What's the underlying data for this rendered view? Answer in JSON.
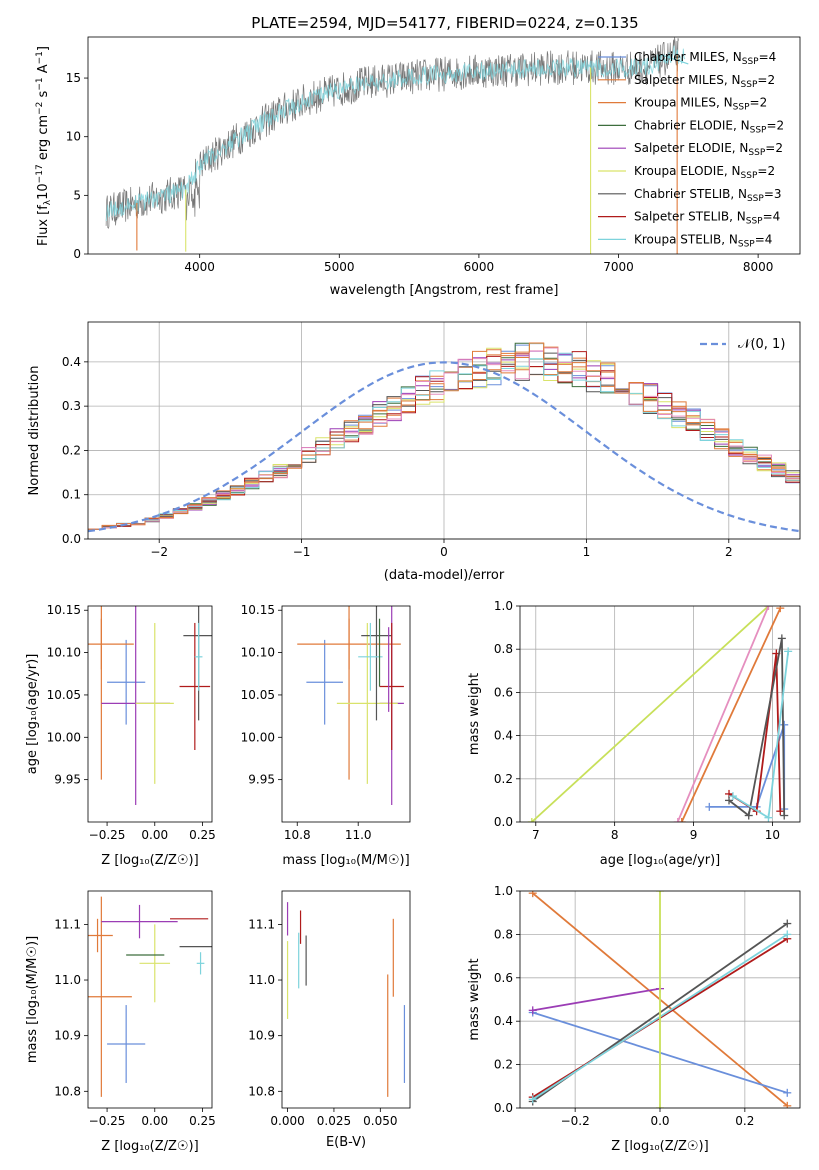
{
  "title": "PLATE=2594, MJD=54177, FIBERID=0224, z=0.135",
  "colors": {
    "Chabrier MILES": "#6a8fdb",
    "Salpeter MILES": "#e07a3a",
    "Kroupa MILES": "#e07a3a",
    "Chabrier ELODIE": "#3d6e3d",
    "Salpeter ELODIE": "#9b3db5",
    "Kroupa ELODIE": "#d9e36b",
    "Chabrier STELIB": "#555555",
    "Salpeter STELIB": "#b01b1b",
    "Kroupa STELIB": "#7dd3dc",
    "gaussian": "#6a8fdb",
    "pink": "#e58fbf",
    "orange2": "#e07a3a",
    "lime": "#c8e05a"
  },
  "chart_data": [
    {
      "id": "spectrum",
      "type": "line",
      "title": "PLATE=2594, MJD=54177, FIBERID=0224, z=0.135",
      "xlabel": "wavelength [Angstrom, rest frame]",
      "ylabel_parts": [
        "Flux [f",
        "λ",
        "10",
        "−17",
        " erg cm",
        "−2",
        " s",
        "−1",
        " A",
        "−1",
        "]"
      ],
      "xlim": [
        3200,
        8300
      ],
      "ylim": [
        0,
        18.5
      ],
      "xticks": [
        4000,
        5000,
        6000,
        7000,
        8000
      ],
      "yticks": [
        0,
        5,
        10,
        15
      ],
      "xtick_labels": [
        "4000",
        "5000",
        "6000",
        "7000",
        "8000"
      ],
      "ytick_labels": [
        "0",
        "5",
        "10",
        "15"
      ],
      "legend_position": "top-right",
      "legend": [
        {
          "name": "Chabrier MILES",
          "nssp": "4"
        },
        {
          "name": "Salpeter MILES",
          "nssp": "2"
        },
        {
          "name": "Kroupa MILES",
          "nssp": "2"
        },
        {
          "name": "Chabrier ELODIE",
          "nssp": "2"
        },
        {
          "name": "Salpeter ELODIE",
          "nssp": "2"
        },
        {
          "name": "Kroupa ELODIE",
          "nssp": "2"
        },
        {
          "name": "Chabrier STELIB",
          "nssp": "3"
        },
        {
          "name": "Salpeter STELIB",
          "nssp": "4"
        },
        {
          "name": "Kroupa STELIB",
          "nssp": "4"
        }
      ],
      "legend_nssp_label": "N",
      "legend_nssp_sub": "SSP",
      "continuum": {
        "x": [
          3300,
          3500,
          3700,
          3900,
          4000,
          4200,
          4400,
          4600,
          4800,
          5000,
          5200,
          5400,
          5600,
          5800,
          6000,
          6200,
          6400,
          6600,
          6800,
          7000,
          7200,
          7400
        ],
        "y": [
          3.5,
          4.2,
          4.8,
          5.5,
          7.5,
          9.3,
          10.8,
          12.3,
          13.3,
          14.0,
          14.6,
          14.9,
          15.2,
          15.4,
          15.6,
          15.7,
          15.8,
          15.9,
          15.9,
          15.8,
          15.9,
          17.0
        ]
      },
      "spikes_down": [
        {
          "x": 3550,
          "y": 0.3
        },
        {
          "x": 3900,
          "y": 0.2
        },
        {
          "x": 6800,
          "y": 0.0
        },
        {
          "x": 7420,
          "y": 0.0
        }
      ],
      "model_curve": {
        "x": [
          7300,
          7400,
          7500
        ],
        "y": [
          17.0,
          16.6,
          16.2
        ]
      }
    },
    {
      "id": "residuals",
      "type": "histogram",
      "xlabel": "(data-model)/error",
      "ylabel": "Normed distribution",
      "xlim": [
        -2.5,
        2.5
      ],
      "ylim": [
        0,
        0.49
      ],
      "xticks": [
        -2,
        -1,
        0,
        1,
        2
      ],
      "yticks": [
        0.0,
        0.1,
        0.2,
        0.3,
        0.4
      ],
      "xtick_labels": [
        "−2",
        "−1",
        "0",
        "1",
        "2"
      ],
      "ytick_labels": [
        "0.0",
        "0.1",
        "0.2",
        "0.3",
        "0.4"
      ],
      "legend_position": "top-right",
      "legend_label": "𝒩(0, 1)",
      "grid": true,
      "bin_edges_start": -2.5,
      "bin_width": 0.1,
      "base_heights": [
        0.025,
        0.028,
        0.032,
        0.036,
        0.043,
        0.052,
        0.062,
        0.073,
        0.085,
        0.098,
        0.11,
        0.124,
        0.14,
        0.155,
        0.172,
        0.19,
        0.208,
        0.228,
        0.245,
        0.265,
        0.282,
        0.3,
        0.318,
        0.333,
        0.347,
        0.36,
        0.372,
        0.382,
        0.39,
        0.396,
        0.399,
        0.399,
        0.396,
        0.39,
        0.382,
        0.372,
        0.36,
        0.347,
        0.333,
        0.318,
        0.3,
        0.282,
        0.265,
        0.245,
        0.228,
        0.208,
        0.19,
        0.172,
        0.155,
        0.14
      ],
      "tail": [
        0.124,
        0.11,
        0.098,
        0.085,
        0.073,
        0.062,
        0.052,
        0.043,
        0.036,
        0.032,
        0.028,
        0.025
      ]
    },
    {
      "id": "age-vs-Z",
      "type": "errorbar",
      "xlabel": "Z [log₁₀(Z/Z☉)]",
      "ylabel": "age  [log₁₀(age/yr)]",
      "xlim": [
        -0.35,
        0.3
      ],
      "ylim": [
        9.9,
        10.155
      ],
      "xticks": [
        -0.25,
        0.0,
        0.25
      ],
      "xtick_labels": [
        "−0.25",
        "0.00",
        "0.25"
      ],
      "yticks": [
        9.95,
        10.0,
        10.05,
        10.1,
        10.15
      ],
      "ytick_labels": [
        "9.95",
        "10.00",
        "10.05",
        "10.10",
        "10.15"
      ],
      "points": [
        {
          "c": "Chabrier MILES",
          "x": -0.15,
          "y": 10.065,
          "xerr": 0.1,
          "yerr": 0.05
        },
        {
          "c": "Salpeter MILES",
          "x": -0.28,
          "y": 10.11,
          "xerr": 0.0,
          "yerr": 0.16
        },
        {
          "c": "Kroupa MILES",
          "x": -0.28,
          "y": 10.11,
          "xerr": 0.17,
          "yerr": 0.03
        },
        {
          "c": "Salpeter ELODIE",
          "x": -0.1,
          "y": 10.04,
          "xerr": 0.18,
          "yerr": 0.12
        },
        {
          "c": "Kroupa ELODIE",
          "x": 0.0,
          "y": 10.04,
          "xerr": 0.1,
          "yerr": 0.095
        },
        {
          "c": "Chabrier STELIB",
          "x": 0.23,
          "y": 10.12,
          "xerr": 0.08,
          "yerr": 0.1
        },
        {
          "c": "Salpeter STELIB",
          "x": 0.21,
          "y": 10.06,
          "xerr": 0.08,
          "yerr": 0.075
        },
        {
          "c": "Kroupa STELIB",
          "x": 0.23,
          "y": 10.095,
          "xerr": 0.02,
          "yerr": 0.04
        }
      ]
    },
    {
      "id": "age-vs-mass",
      "type": "errorbar",
      "xlabel": "mass [log₁₀(M/M☉)]",
      "ylabel": "",
      "xlim": [
        10.75,
        11.17
      ],
      "ylim": [
        9.9,
        10.155
      ],
      "xticks": [
        10.8,
        11.0
      ],
      "xtick_labels": [
        "10.8",
        "11.0"
      ],
      "yticks": [
        9.95,
        10.0,
        10.05,
        10.1,
        10.15
      ],
      "ytick_labels": [
        "9.95",
        "10.00",
        "10.05",
        "10.10",
        "10.15"
      ],
      "points": [
        {
          "c": "Chabrier MILES",
          "x": 10.89,
          "y": 10.065,
          "xerr": 0.06,
          "yerr": 0.05
        },
        {
          "c": "Salpeter MILES",
          "x": 10.97,
          "y": 10.11,
          "xerr": 0.0,
          "yerr": 0.16
        },
        {
          "c": "Kroupa MILES",
          "x": 10.97,
          "y": 10.11,
          "xerr": 0.17,
          "yerr": 0.03
        },
        {
          "c": "Salpeter ELODIE",
          "x": 11.11,
          "y": 10.04,
          "xerr": 0.04,
          "yerr": 0.12
        },
        {
          "c": "Kroupa ELODIE",
          "x": 11.03,
          "y": 10.04,
          "xerr": 0.1,
          "yerr": 0.095
        },
        {
          "c": "Chabrier STELIB",
          "x": 11.06,
          "y": 10.12,
          "xerr": 0.05,
          "yerr": 0.1
        },
        {
          "c": "Salpeter STELIB",
          "x": 11.11,
          "y": 10.06,
          "xerr": 0.04,
          "yerr": 0.075
        },
        {
          "c": "Kroupa STELIB",
          "x": 11.04,
          "y": 10.095,
          "xerr": 0.04,
          "yerr": 0.04
        },
        {
          "c": "Salpeter ELODIE",
          "x": 11.1,
          "y": 10.08,
          "xerr": 0.0,
          "yerr": 0.05
        },
        {
          "c": "Chabrier ELODIE",
          "x": 11.07,
          "y": 10.1,
          "xerr": 0.0,
          "yerr": 0.04
        }
      ]
    },
    {
      "id": "mass-vs-Z",
      "type": "errorbar",
      "xlabel": "Z [log₁₀(Z/Z☉)]",
      "ylabel": "mass [log₁₀(M/M☉)]",
      "xlim": [
        -0.35,
        0.3
      ],
      "ylim": [
        10.77,
        11.16
      ],
      "xticks": [
        -0.25,
        0.0,
        0.25
      ],
      "xtick_labels": [
        "−0.25",
        "0.00",
        "0.25"
      ],
      "yticks": [
        10.8,
        10.9,
        11.0,
        11.1
      ],
      "ytick_labels": [
        "10.8",
        "10.9",
        "11.0",
        "11.1"
      ],
      "points": [
        {
          "c": "Chabrier MILES",
          "x": -0.15,
          "y": 10.885,
          "xerr": 0.1,
          "yerr": 0.07
        },
        {
          "c": "Salpeter MILES",
          "x": -0.28,
          "y": 10.97,
          "xerr": 0.16,
          "yerr": 0.18
        },
        {
          "c": "Kroupa MILES",
          "x": -0.3,
          "y": 11.08,
          "xerr": 0.08,
          "yerr": 0.03
        },
        {
          "c": "Salpeter ELODIE",
          "x": -0.08,
          "y": 11.105,
          "xerr": 0.2,
          "yerr": 0.03
        },
        {
          "c": "Kroupa ELODIE",
          "x": 0.0,
          "y": 11.03,
          "xerr": 0.08,
          "yerr": 0.07
        },
        {
          "c": "Chabrier ELODIE",
          "x": -0.05,
          "y": 11.045,
          "xerr": 0.1,
          "yerr": 0.0
        },
        {
          "c": "Chabrier STELIB",
          "x": 0.22,
          "y": 11.06,
          "xerr": 0.09,
          "yerr": 0.0
        },
        {
          "c": "Salpeter STELIB",
          "x": 0.18,
          "y": 11.11,
          "xerr": 0.1,
          "yerr": 0.0
        },
        {
          "c": "Kroupa STELIB",
          "x": 0.24,
          "y": 11.03,
          "xerr": 0.02,
          "yerr": 0.02
        }
      ]
    },
    {
      "id": "mass-vs-ebv",
      "type": "errorbar",
      "xlabel": "E(B-V)",
      "ylabel": "",
      "xlim": [
        -0.003,
        0.066
      ],
      "ylim": [
        10.77,
        11.16
      ],
      "xticks": [
        0.0,
        0.025,
        0.05
      ],
      "xtick_labels": [
        "0.000",
        "0.025",
        "0.050"
      ],
      "yticks": [
        10.8,
        10.9,
        11.0,
        11.1
      ],
      "ytick_labels": [
        "10.8",
        "10.9",
        "11.0",
        "11.1"
      ],
      "points": [
        {
          "c": "Chabrier MILES",
          "x": 0.063,
          "y": 10.885,
          "xerr": 0.0,
          "yerr": 0.07
        },
        {
          "c": "Salpeter MILES",
          "x": 0.054,
          "y": 10.9,
          "xerr": 0.0,
          "yerr": 0.11
        },
        {
          "c": "Kroupa MILES",
          "x": 0.057,
          "y": 11.04,
          "xerr": 0.0,
          "yerr": 0.07
        },
        {
          "c": "Salpeter ELODIE",
          "x": 0.0,
          "y": 11.11,
          "xerr": 0.0,
          "yerr": 0.03
        },
        {
          "c": "Kroupa ELODIE",
          "x": 0.0,
          "y": 11.0,
          "xerr": 0.0,
          "yerr": 0.07
        },
        {
          "c": "Chabrier STELIB",
          "x": 0.01,
          "y": 11.035,
          "xerr": 0.0,
          "yerr": 0.045
        },
        {
          "c": "Salpeter STELIB",
          "x": 0.007,
          "y": 11.095,
          "xerr": 0.0,
          "yerr": 0.03
        },
        {
          "c": "Kroupa STELIB",
          "x": 0.006,
          "y": 11.035,
          "xerr": 0.0,
          "yerr": 0.05
        }
      ]
    },
    {
      "id": "massweight-vs-age",
      "type": "line",
      "xlabel": "age  [log₁₀(age/yr)]",
      "ylabel": "mass weight",
      "xlim": [
        6.8,
        10.35
      ],
      "ylim": [
        0,
        1.0
      ],
      "xticks": [
        7,
        8,
        9,
        10
      ],
      "xtick_labels": [
        "7",
        "8",
        "9",
        "10"
      ],
      "yticks": [
        0.0,
        0.2,
        0.4,
        0.6,
        0.8,
        1.0
      ],
      "ytick_labels": [
        "0.0",
        "0.2",
        "0.4",
        "0.6",
        "0.8",
        "1.0"
      ],
      "grid": true,
      "series": [
        {
          "c": "lime",
          "x": [
            6.95,
            9.95
          ],
          "y": [
            0.0,
            1.0
          ]
        },
        {
          "c": "orange2",
          "x": [
            8.85,
            10.1
          ],
          "y": [
            0.0,
            0.99
          ]
        },
        {
          "c": "pink",
          "x": [
            8.8,
            9.95
          ],
          "y": [
            0.0,
            1.0
          ]
        },
        {
          "c": "Chabrier MILES",
          "x": [
            9.2,
            9.8,
            10.15,
            10.15
          ],
          "y": [
            0.07,
            0.07,
            0.45,
            0.06
          ]
        },
        {
          "c": "Salpeter STELIB",
          "x": [
            9.45,
            9.8,
            10.05,
            10.1
          ],
          "y": [
            0.13,
            0.05,
            0.78,
            0.05
          ]
        },
        {
          "c": "Chabrier STELIB",
          "x": [
            9.45,
            9.7,
            10.12,
            10.15
          ],
          "y": [
            0.1,
            0.03,
            0.85,
            0.03
          ]
        },
        {
          "c": "Kroupa STELIB",
          "x": [
            9.5,
            9.95,
            10.2
          ],
          "y": [
            0.12,
            0.02,
            0.79
          ]
        }
      ]
    },
    {
      "id": "massweight-vs-Z",
      "type": "line",
      "xlabel": "Z [log₁₀(Z/Z☉)]",
      "ylabel": "mass weight",
      "xlim": [
        -0.33,
        0.33
      ],
      "ylim": [
        0,
        1.0
      ],
      "xticks": [
        -0.2,
        0.0,
        0.2
      ],
      "xtick_labels": [
        "−0.2",
        "0.0",
        "0.2"
      ],
      "yticks": [
        0.0,
        0.2,
        0.4,
        0.6,
        0.8,
        1.0
      ],
      "ytick_labels": [
        "0.0",
        "0.2",
        "0.4",
        "0.6",
        "0.8",
        "1.0"
      ],
      "grid": true,
      "series": [
        {
          "c": "orange2",
          "x": [
            -0.3,
            0.3
          ],
          "y": [
            0.99,
            0.01
          ]
        },
        {
          "c": "Chabrier MILES",
          "x": [
            -0.3,
            0.3
          ],
          "y": [
            0.44,
            0.07
          ]
        },
        {
          "c": "Salpeter ELODIE",
          "x": [
            -0.3,
            0.0
          ],
          "y": [
            0.45,
            0.55
          ]
        },
        {
          "c": "Chabrier STELIB",
          "x": [
            -0.3,
            0.3
          ],
          "y": [
            0.03,
            0.85
          ]
        },
        {
          "c": "Salpeter STELIB",
          "x": [
            -0.3,
            0.3
          ],
          "y": [
            0.05,
            0.78
          ]
        },
        {
          "c": "Kroupa STELIB",
          "x": [
            -0.3,
            0.3
          ],
          "y": [
            0.04,
            0.8
          ]
        },
        {
          "c": "lime",
          "x": [
            0.0,
            0.0
          ],
          "y": [
            0.0,
            1.0
          ]
        }
      ]
    }
  ]
}
